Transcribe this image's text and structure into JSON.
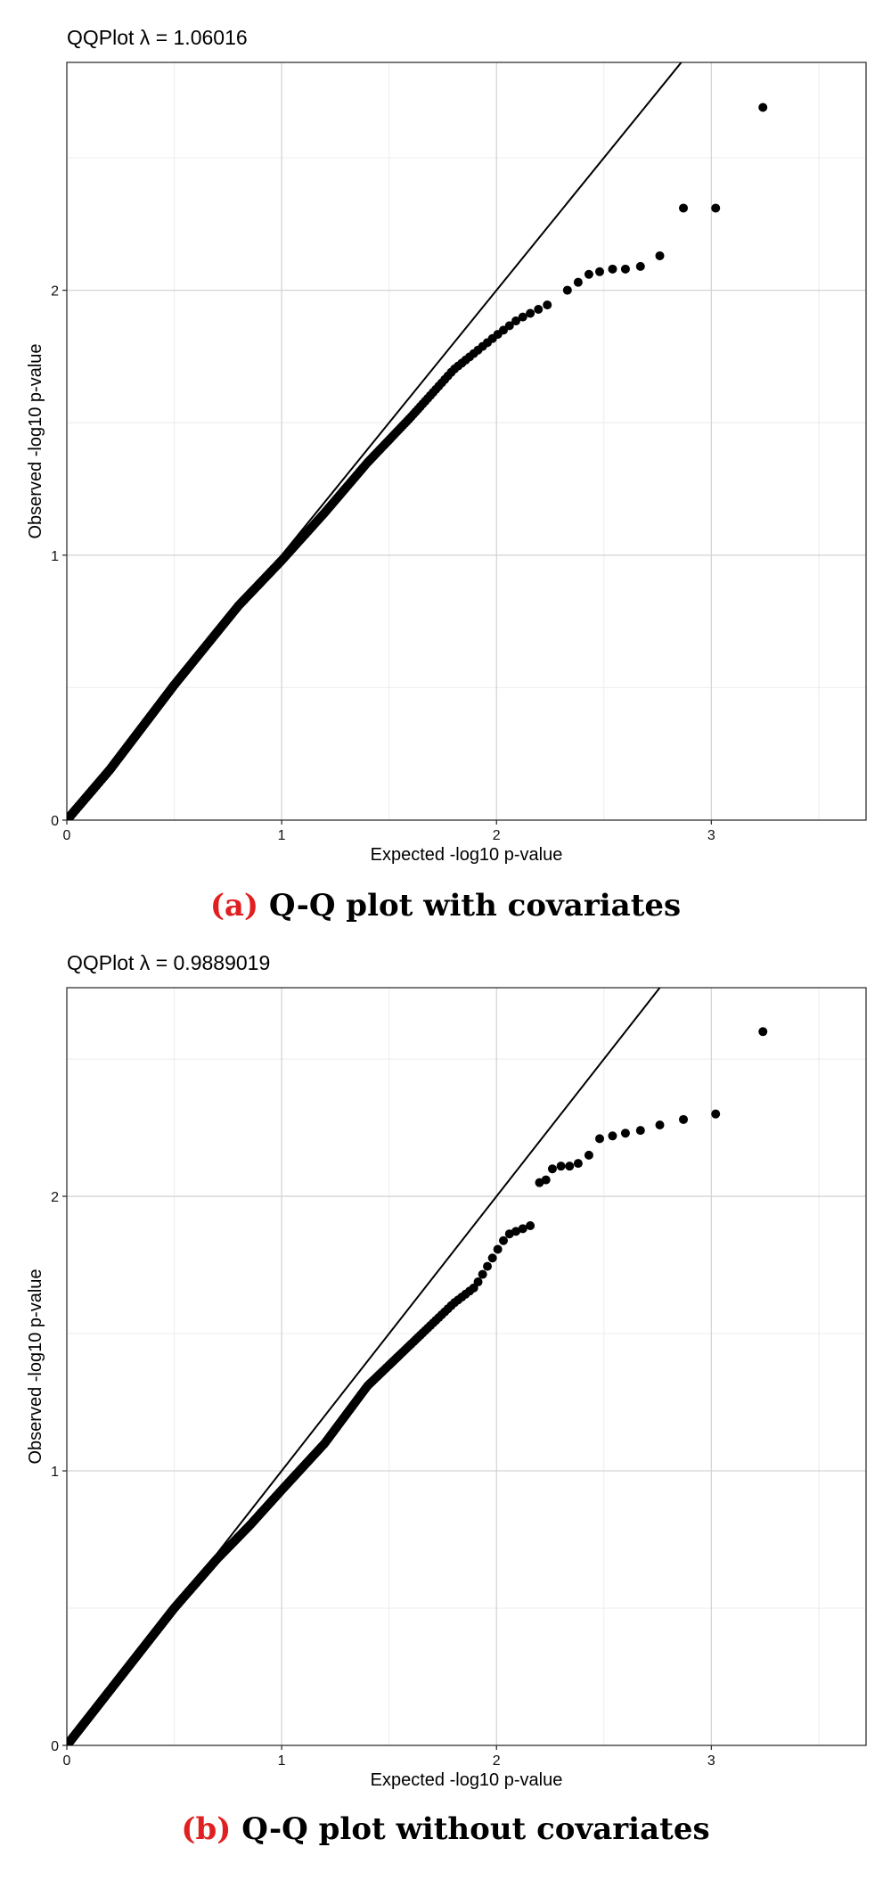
{
  "panels": [
    {
      "title": "QQPlot λ =  1.06016",
      "caption_tag": "(a)",
      "caption_text": "Q-Q plot with covariates"
    },
    {
      "title": "QQPlot λ =  0.9889019",
      "caption_tag": "(b)",
      "caption_text": "Q-Q plot without covariates"
    }
  ],
  "chart_data": [
    {
      "type": "scatter",
      "title": "QQPlot λ =  1.06016",
      "xlabel": "Expected -log10 p-value",
      "ylabel": "Observed -log10 p-value",
      "xlim": [
        0,
        3.72
      ],
      "ylim": [
        0,
        2.86
      ],
      "x_ticks": [
        "0",
        "1",
        "2",
        "3"
      ],
      "y_ticks": [
        "0",
        "1",
        "2"
      ],
      "grid": true,
      "reference_line": "y = x",
      "n_points": 1722,
      "bulk_curve": [
        [
          0,
          0
        ],
        [
          0.2,
          0.19
        ],
        [
          0.5,
          0.51
        ],
        [
          0.8,
          0.81
        ],
        [
          1.0,
          0.98
        ],
        [
          1.2,
          1.16
        ],
        [
          1.4,
          1.35
        ],
        [
          1.6,
          1.52
        ],
        [
          1.8,
          1.7
        ],
        [
          2.0,
          1.83
        ],
        [
          2.1,
          1.89
        ],
        [
          2.25,
          1.95
        ]
      ],
      "tail_points": [
        [
          2.33,
          2.0
        ],
        [
          2.38,
          2.03
        ],
        [
          2.43,
          2.06
        ],
        [
          2.48,
          2.07
        ],
        [
          2.54,
          2.08
        ],
        [
          2.6,
          2.08
        ],
        [
          2.67,
          2.09
        ],
        [
          2.76,
          2.13
        ],
        [
          2.87,
          2.31
        ],
        [
          3.02,
          2.31
        ],
        [
          3.24,
          2.69
        ]
      ]
    },
    {
      "type": "scatter",
      "title": "QQPlot λ =  0.9889019",
      "xlabel": "Expected -log10 p-value",
      "ylabel": "Observed -log10 p-value",
      "xlim": [
        0,
        3.72
      ],
      "ylim": [
        0,
        2.76
      ],
      "x_ticks": [
        "0",
        "1",
        "2",
        "3"
      ],
      "y_ticks": [
        "0",
        "1",
        "2"
      ],
      "grid": true,
      "reference_line": "y = x",
      "n_points": 1722,
      "bulk_curve": [
        [
          0,
          0
        ],
        [
          0.2,
          0.2
        ],
        [
          0.5,
          0.5
        ],
        [
          0.7,
          0.68
        ],
        [
          0.85,
          0.8
        ],
        [
          1.0,
          0.93
        ],
        [
          1.2,
          1.1
        ],
        [
          1.4,
          1.31
        ],
        [
          1.6,
          1.46
        ],
        [
          1.8,
          1.61
        ],
        [
          1.9,
          1.67
        ],
        [
          2.0,
          1.8
        ],
        [
          2.05,
          1.86
        ],
        [
          2.18,
          1.9
        ]
      ],
      "tail_points": [
        [
          2.2,
          2.05
        ],
        [
          2.23,
          2.06
        ],
        [
          2.26,
          2.1
        ],
        [
          2.3,
          2.11
        ],
        [
          2.34,
          2.11
        ],
        [
          2.38,
          2.12
        ],
        [
          2.43,
          2.15
        ],
        [
          2.48,
          2.21
        ],
        [
          2.54,
          2.22
        ],
        [
          2.6,
          2.23
        ],
        [
          2.67,
          2.24
        ],
        [
          2.76,
          2.26
        ],
        [
          2.87,
          2.28
        ],
        [
          3.02,
          2.3
        ],
        [
          3.24,
          2.6
        ]
      ]
    }
  ]
}
